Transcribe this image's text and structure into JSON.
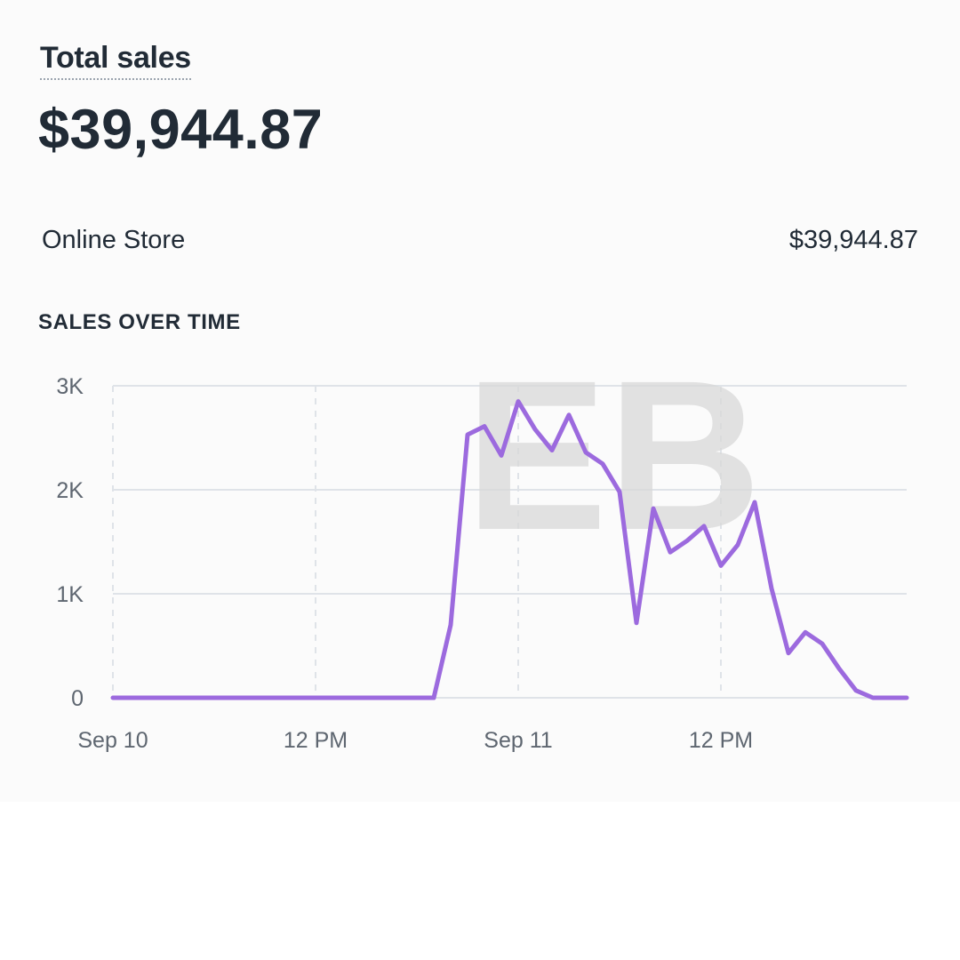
{
  "header": {
    "title": "Total sales",
    "total_value": "$39,944.87"
  },
  "breakdown": {
    "channel_label": "Online Store",
    "channel_value": "$39,944.87"
  },
  "section_title": "SALES OVER TIME",
  "watermark_text": "EB",
  "colors": {
    "line": "#9c6ade",
    "grid": "#dfe3e8",
    "text": "#212b36",
    "tick": "#5e6670"
  },
  "chart_data": {
    "type": "line",
    "title": "SALES OVER TIME",
    "xlabel": "",
    "ylabel": "",
    "ylim": [
      0,
      3000
    ],
    "y_ticks": [
      {
        "value": 0,
        "label": "0"
      },
      {
        "value": 1000,
        "label": "1K"
      },
      {
        "value": 2000,
        "label": "2K"
      },
      {
        "value": 3000,
        "label": "3K"
      }
    ],
    "x_unit": "hours since Sep 10 00:00",
    "xlim": [
      0,
      47
    ],
    "x_ticks": [
      {
        "value": 0,
        "label": "Sep 10"
      },
      {
        "value": 12,
        "label": "12 PM"
      },
      {
        "value": 24,
        "label": "Sep 11"
      },
      {
        "value": 36,
        "label": "12 PM"
      }
    ],
    "grid": true,
    "series": [
      {
        "values": [
          [
            0,
            0
          ],
          [
            19,
            0
          ],
          [
            20,
            700
          ],
          [
            21,
            2530
          ],
          [
            22,
            2610
          ],
          [
            23,
            2330
          ],
          [
            24,
            2850
          ],
          [
            25,
            2580
          ],
          [
            26,
            2380
          ],
          [
            27,
            2720
          ],
          [
            28,
            2360
          ],
          [
            29,
            2250
          ],
          [
            30,
            1980
          ],
          [
            31,
            720
          ],
          [
            32,
            1820
          ],
          [
            33,
            1400
          ],
          [
            34,
            1510
          ],
          [
            35,
            1650
          ],
          [
            36,
            1270
          ],
          [
            37,
            1470
          ],
          [
            38,
            1880
          ],
          [
            39,
            1050
          ],
          [
            40,
            430
          ],
          [
            41,
            630
          ],
          [
            42,
            520
          ],
          [
            43,
            280
          ],
          [
            44,
            70
          ],
          [
            45,
            0
          ],
          [
            47,
            0
          ]
        ]
      }
    ]
  }
}
